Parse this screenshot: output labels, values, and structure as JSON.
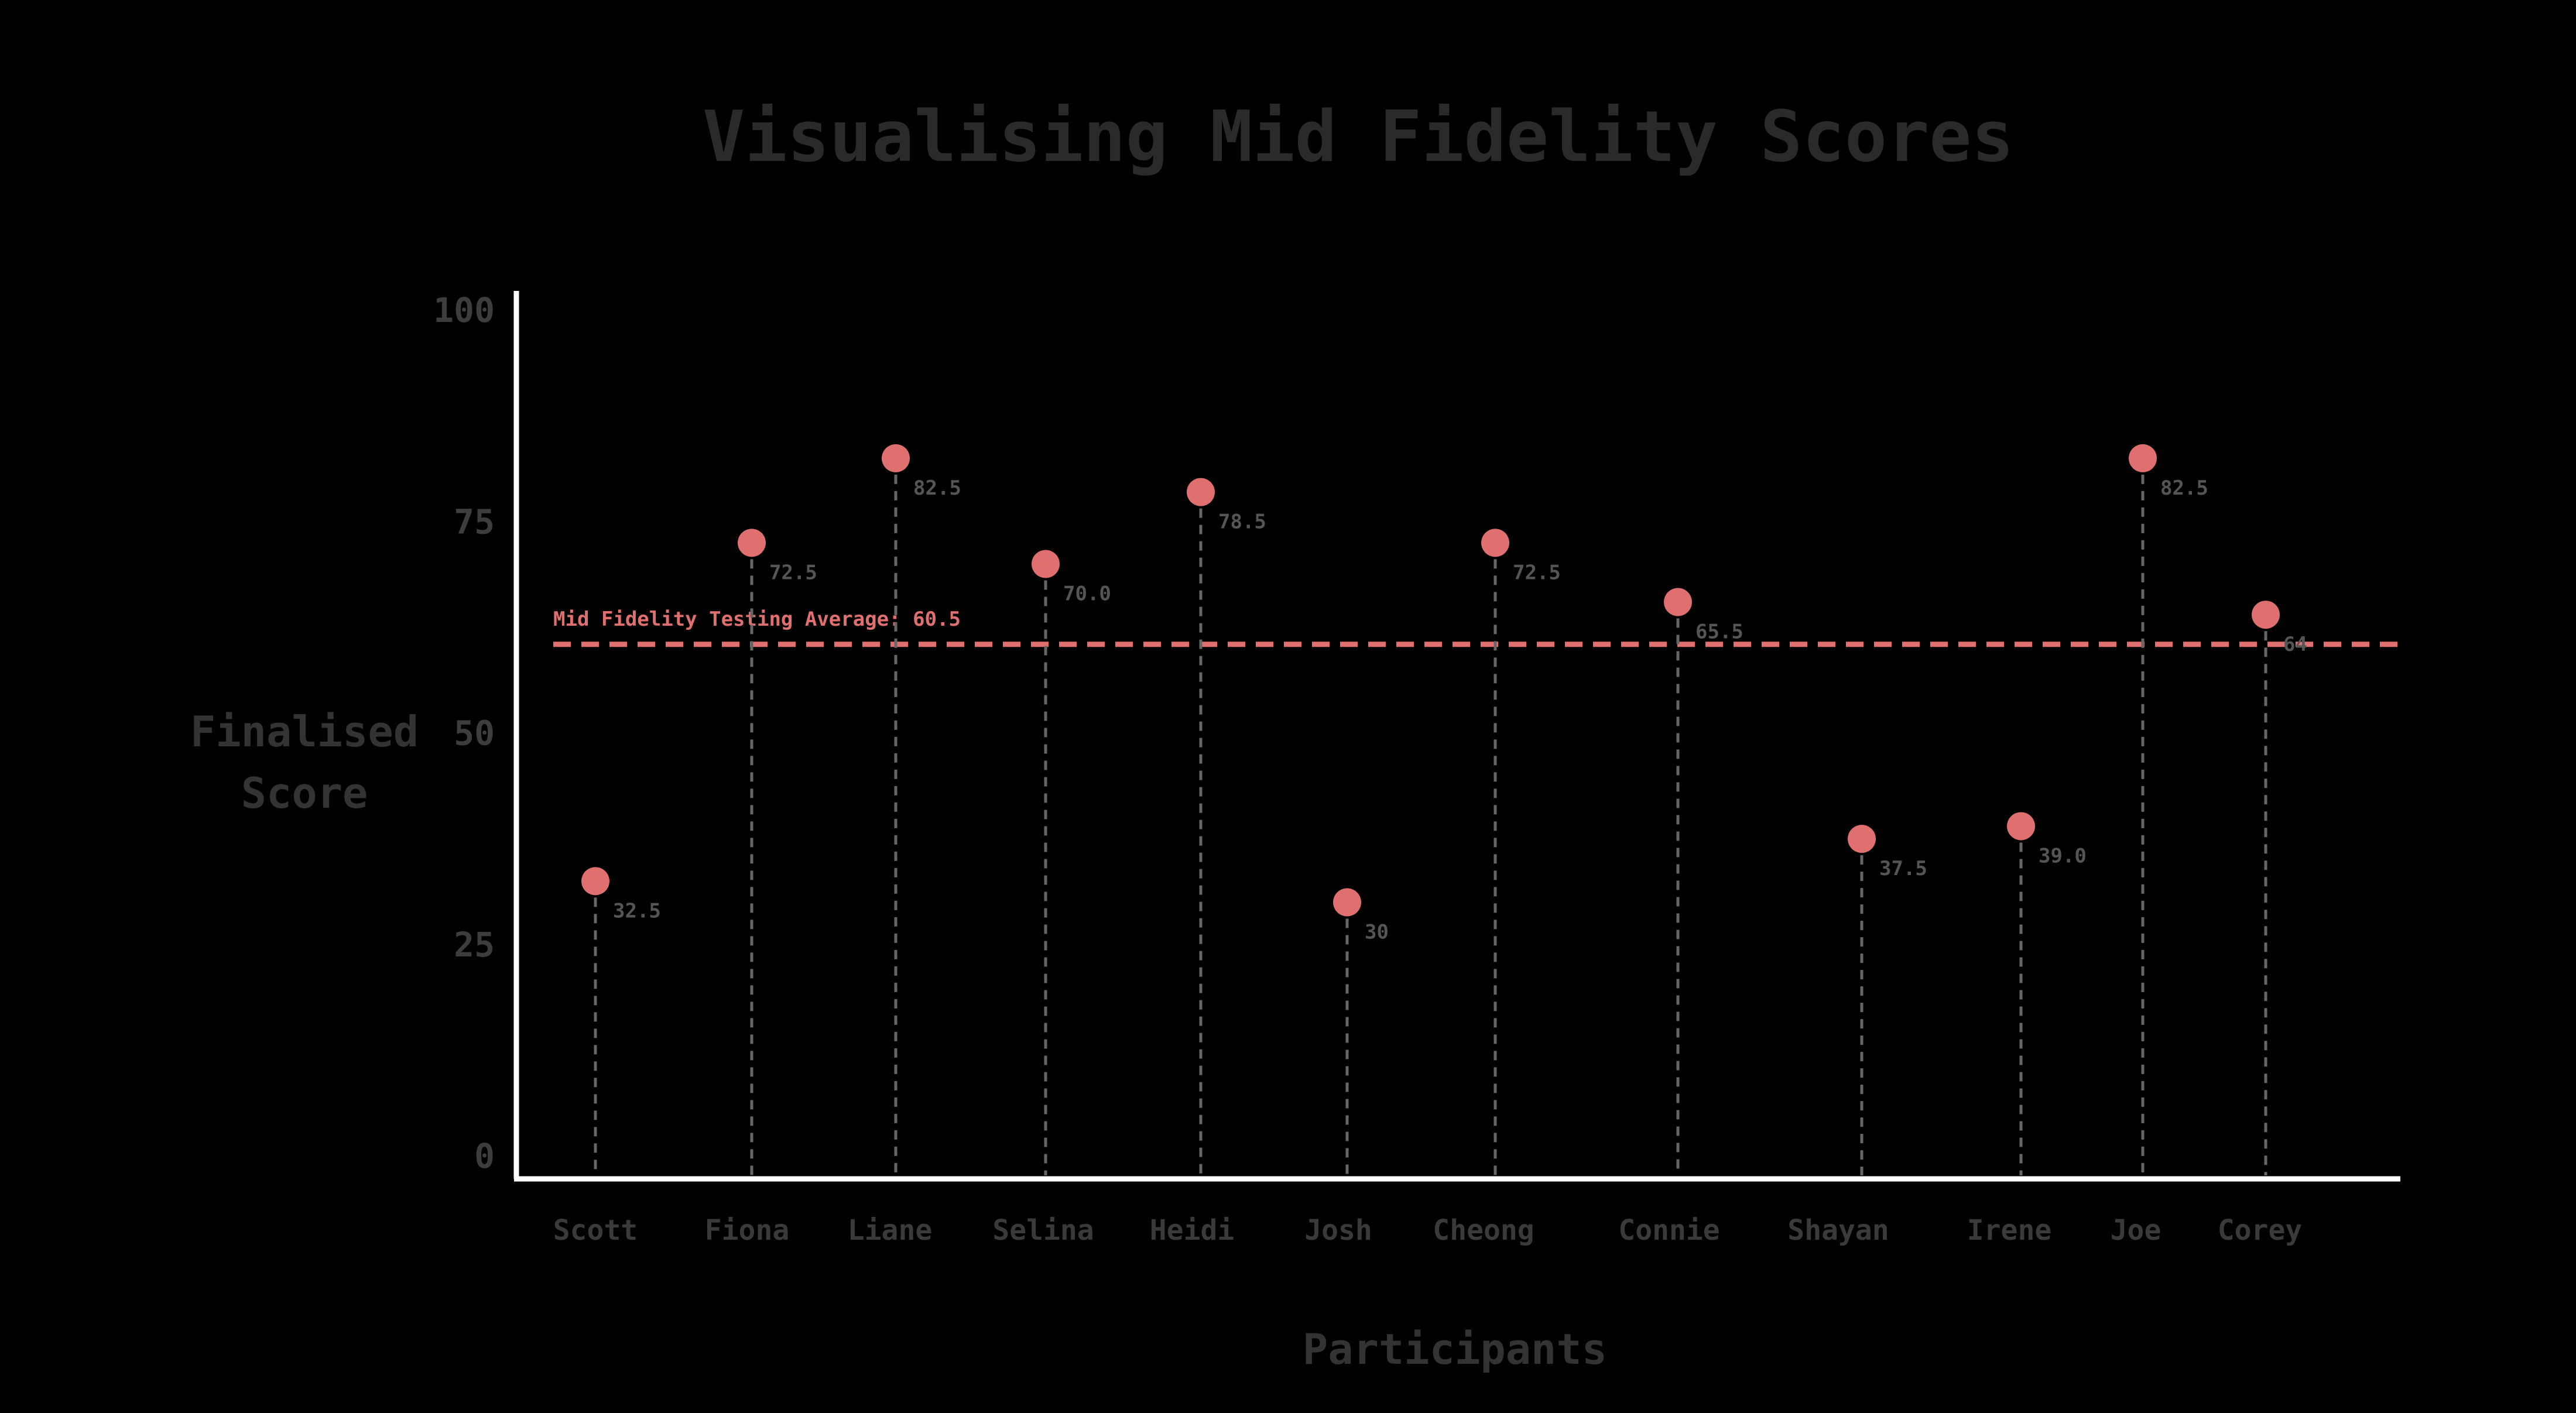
{
  "chart_data": {
    "type": "scatter",
    "title": "Visualising Mid Fidelity Scores",
    "xlabel": "Participants",
    "ylabel": "Finalised Score",
    "ylim": [
      0,
      100
    ],
    "yticks": [
      0,
      25,
      50,
      75,
      100
    ],
    "ytick_labels": [
      "0",
      "25",
      "50",
      "75",
      "100"
    ],
    "grid": false,
    "legend": "none",
    "categories": [
      "Scott",
      "Fiona",
      "Liane",
      "Selina",
      "Heidi",
      "Josh",
      "Cheong",
      "Connie",
      "Shayan",
      "Irene",
      "Joe",
      "Corey"
    ],
    "series": [
      {
        "values": [
          32.5,
          72.5,
          82.5,
          70,
          78.5,
          30,
          72.5,
          65.5,
          37.5,
          39,
          82.5,
          64
        ],
        "value_labels": [
          "32.5",
          "72.5",
          "82.5",
          "70.0",
          "78.5",
          "30",
          "72.5",
          "65.5",
          "37.5",
          "39.0",
          "82.5",
          "64"
        ],
        "color": "#e07070"
      }
    ],
    "reference_line": {
      "value": 60.5,
      "label": "Mid Fidelity Testing Average: 60.5",
      "color": "#e07070"
    },
    "colors": {
      "background": "#000000",
      "axis": "#ffffff",
      "stem": "#666666",
      "point": "#e07070"
    }
  }
}
